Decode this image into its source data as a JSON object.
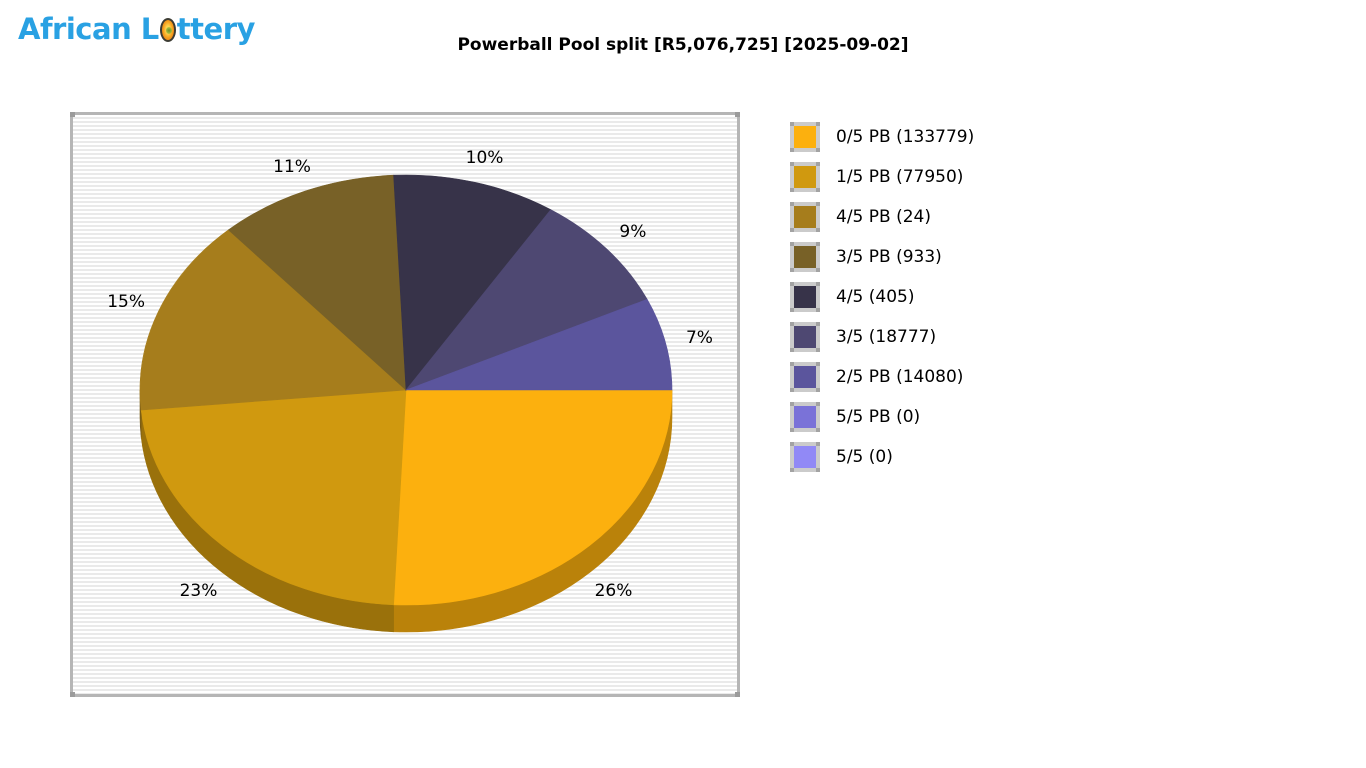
{
  "logo": {
    "text": "African Lottery",
    "part1": "African L",
    "part2": "ttery",
    "color": "#29A1E3"
  },
  "chart_data": {
    "type": "pie",
    "style": "3d",
    "title": "Powerball Pool split [R5,076,725] [2025-09-02]",
    "pool_total": "R5,076,725",
    "draw_date": "2025-09-02",
    "legend_position": "right",
    "slices": [
      {
        "division": "0/5 PB",
        "label": "0/5 PB (133779)",
        "winners": 133779,
        "pct": 26,
        "pct_label": "26%",
        "color": "#FCB00E"
      },
      {
        "division": "1/5 PB",
        "label": "1/5 PB (77950)",
        "winners": 77950,
        "pct": 23,
        "pct_label": "23%",
        "color": "#D0990F"
      },
      {
        "division": "4/5 PB",
        "label": "4/5 PB (24)",
        "winners": 24,
        "pct": 15,
        "pct_label": "15%",
        "color": "#A67D1C"
      },
      {
        "division": "3/5 PB",
        "label": "3/5 PB (933)",
        "winners": 933,
        "pct": 11,
        "pct_label": "11%",
        "color": "#786127"
      },
      {
        "division": "4/5",
        "label": "4/5 (405)",
        "winners": 405,
        "pct": 10,
        "pct_label": "10%",
        "color": "#373349"
      },
      {
        "division": "3/5",
        "label": "3/5 (18777)",
        "winners": 18777,
        "pct": 9,
        "pct_label": "9%",
        "color": "#4E4872"
      },
      {
        "division": "2/5 PB",
        "label": "2/5 PB (14080)",
        "winners": 14080,
        "pct": 7,
        "pct_label": "7%",
        "color": "#5B559D"
      },
      {
        "division": "5/5 PB",
        "label": "5/5 PB (0)",
        "winners": 0,
        "pct": 0,
        "pct_label": "",
        "color": "#7A72D8"
      },
      {
        "division": "5/5",
        "label": "5/5 (0)",
        "winners": 0,
        "pct": 0,
        "pct_label": "",
        "color": "#9189F6"
      }
    ]
  }
}
